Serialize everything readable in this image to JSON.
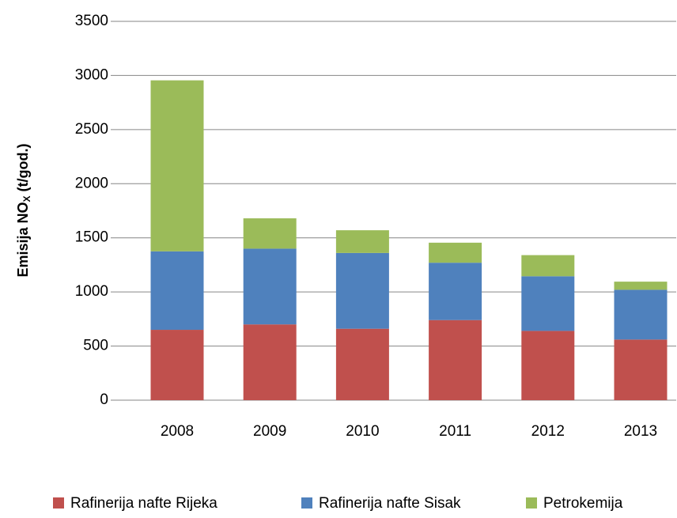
{
  "chart_data": {
    "type": "stacked_bar",
    "ylabel_parts": [
      "Emisija NO",
      "X",
      " (t/god.)"
    ],
    "categories": [
      "2008",
      "2009",
      "2010",
      "2011",
      "2012",
      "2013"
    ],
    "series": [
      {
        "name": "Rafinerija nafte Rijeka",
        "color": "#c0504d",
        "values": [
          650,
          700,
          660,
          740,
          640,
          560
        ]
      },
      {
        "name": "Rafinerija nafte Sisak",
        "color": "#4f81bd",
        "values": [
          725,
          700,
          700,
          530,
          505,
          460
        ]
      },
      {
        "name": "Petrokemija",
        "color": "#9bbb59",
        "values": [
          1580,
          280,
          210,
          185,
          195,
          75
        ]
      }
    ],
    "ylim": [
      0,
      3500
    ],
    "yticks": [
      0,
      500,
      1000,
      1500,
      2000,
      2500,
      3000,
      3500
    ],
    "grid": true,
    "legend": "bottom"
  }
}
